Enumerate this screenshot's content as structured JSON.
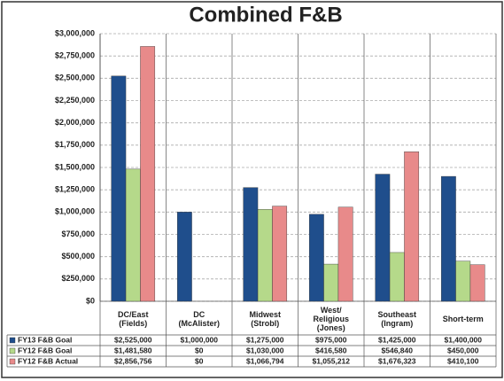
{
  "chart_data": {
    "type": "bar",
    "title": "Combined F&B",
    "categories": [
      "DC/East\n(Fields)",
      "DC\n(McAlister)",
      "Midwest\n(Strobl)",
      "West/\nReligious\n(Jones)",
      "Southeast\n(Ingram)",
      "Short-term"
    ],
    "series": [
      {
        "name": "FY13 F&B Goal",
        "color": "#1f4e8c",
        "values": [
          2525000,
          1000000,
          1275000,
          975000,
          1425000,
          1400000
        ],
        "value_labels": [
          "$2,525,000",
          "$1,000,000",
          "$1,275,000",
          "$975,000",
          "$1,425,000",
          "$1,400,000"
        ]
      },
      {
        "name": "FY12 F&B Goal",
        "color": "#b5d98a",
        "values": [
          1481580,
          0,
          1030000,
          416580,
          546840,
          450000
        ],
        "value_labels": [
          "$1,481,580",
          "$0",
          "$1,030,000",
          "$416,580",
          "$546,840",
          "$450,000"
        ]
      },
      {
        "name": "FY12 F&B Actual",
        "color": "#e88a8a",
        "values": [
          2856756,
          0,
          1066794,
          1055212,
          1676323,
          410100
        ],
        "value_labels": [
          "$2,856,756",
          "$0",
          "$1,066,794",
          "$1,055,212",
          "$1,676,323",
          "$410,100"
        ]
      }
    ],
    "ylim": [
      0,
      3000000
    ],
    "yticks": [
      {
        "value": 0,
        "label": "$0"
      },
      {
        "value": 250000,
        "label": "$250,000"
      },
      {
        "value": 500000,
        "label": "$500,000"
      },
      {
        "value": 750000,
        "label": "$750,000"
      },
      {
        "value": 1000000,
        "label": "$1,000,000"
      },
      {
        "value": 1250000,
        "label": "$1,250,000"
      },
      {
        "value": 1500000,
        "label": "$1,500,000"
      },
      {
        "value": 1750000,
        "label": "$1,750,000"
      },
      {
        "value": 2000000,
        "label": "$2,000,000"
      },
      {
        "value": 2250000,
        "label": "$2,250,000"
      },
      {
        "value": 2500000,
        "label": "$2,500,000"
      },
      {
        "value": 2750000,
        "label": "$2,750,000"
      },
      {
        "value": 3000000,
        "label": "$3,000,000"
      }
    ],
    "grid": true
  }
}
